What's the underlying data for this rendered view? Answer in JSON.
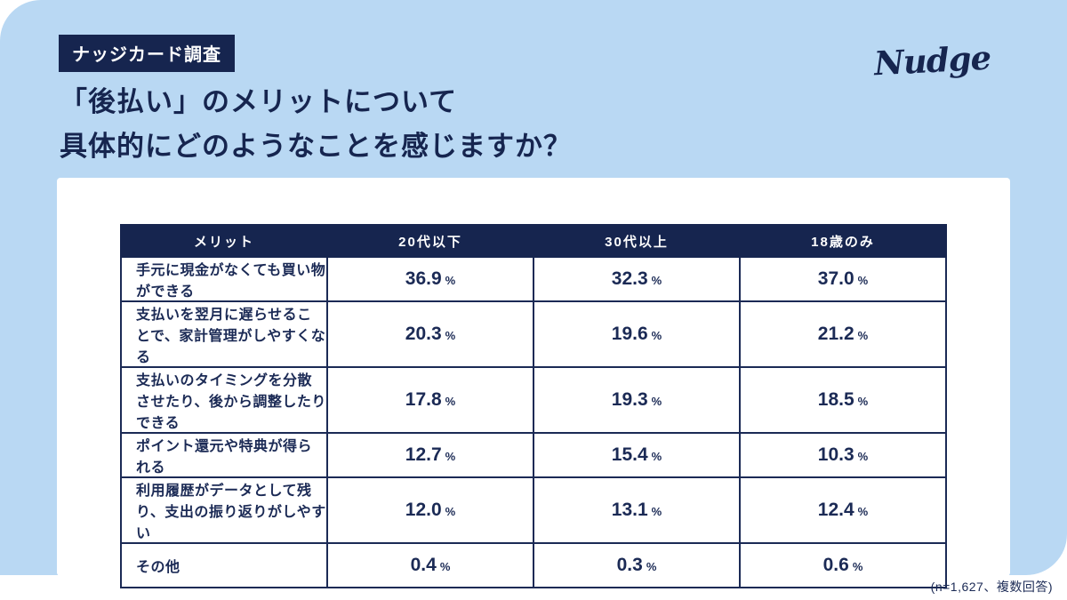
{
  "header": {
    "badge": "ナッジカード調査",
    "title_line1": "「後払い」のメリットについて",
    "title_line2": "具体的にどのようなことを感じますか？",
    "logo": "Nudge"
  },
  "footnote": "(n=1,627、複数回答)",
  "chart_data": {
    "type": "table",
    "title": "「後払い」のメリットについて具体的にどのようなことを感じますか？",
    "columns": [
      "メリット",
      "20代以下",
      "30代以上",
      "18歳のみ"
    ],
    "unit": "%",
    "rows": [
      {
        "label": "手元に現金がなくても買い物ができる",
        "values": [
          "36.9",
          "32.3",
          "37.0"
        ],
        "highlight": "blue"
      },
      {
        "label": "支払いを翌月に遅らせることで、家計管理がしやすくなる",
        "values": [
          "20.3",
          "19.6",
          "21.2"
        ],
        "highlight": "lightblue"
      },
      {
        "label": "支払いのタイミングを分散させたり、後から調整したりできる",
        "values": [
          "17.8",
          "19.3",
          "18.5"
        ],
        "highlight": "gray"
      },
      {
        "label": "ポイント還元や特典が得られる",
        "values": [
          "12.7",
          "15.4",
          "10.3"
        ],
        "highlight": "none"
      },
      {
        "label": "利用履歴がデータとして残り、支出の振り返りがしやすい",
        "values": [
          "12.0",
          "13.1",
          "12.4"
        ],
        "highlight": "none"
      },
      {
        "label": "その他",
        "values": [
          "0.4",
          "0.3",
          "0.6"
        ],
        "highlight": "none"
      }
    ],
    "sample_note": "n=1,627、複数回答",
    "legend_position": "none",
    "grid": false
  },
  "colors": {
    "background_blue": "#b9d8f3",
    "navy": "#16254f",
    "highlight_blue": "#d6e9f8",
    "highlight_lightblue": "#eaf4fc",
    "highlight_gray": "#e4e5e8",
    "card_white": "#ffffff"
  }
}
